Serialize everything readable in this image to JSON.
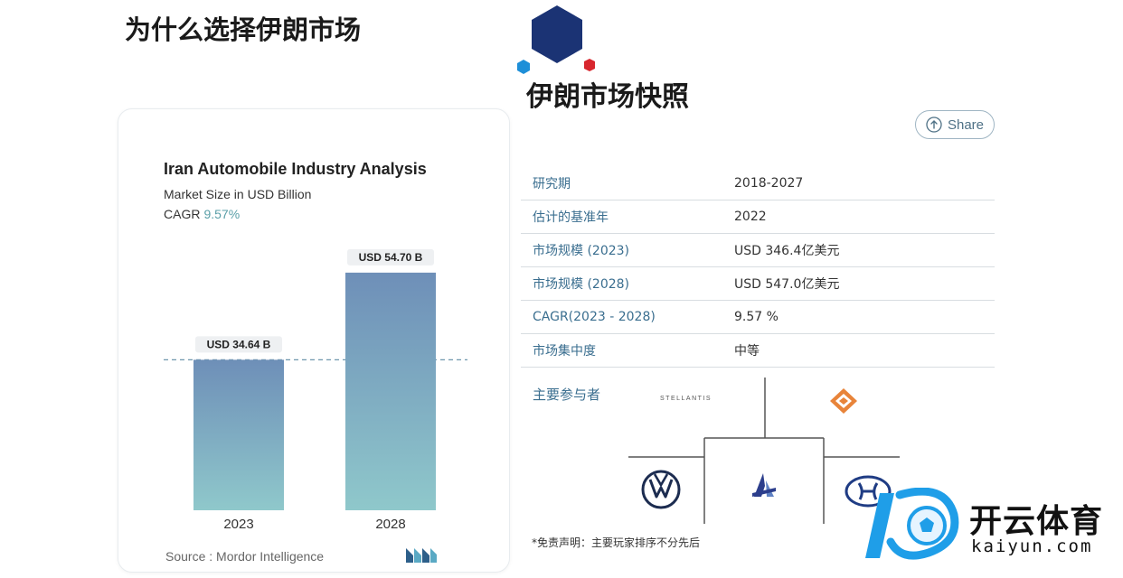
{
  "page": {
    "title": "为什么选择伊朗市场",
    "snapshot_title": "伊朗市场快照"
  },
  "share": {
    "label": "Share"
  },
  "chart_card": {
    "title": "Iran Automobile Industry Analysis",
    "subtitle": "Market Size in USD Billion",
    "cagr_label": "CAGR",
    "cagr_value": "9.57%",
    "source": "Source :  Mordor Intelligence"
  },
  "chart_data": {
    "type": "bar",
    "categories": [
      "2023",
      "2028"
    ],
    "values": [
      34.64,
      54.7
    ],
    "data_labels": [
      "USD 34.64 B",
      "USD 54.70 B"
    ],
    "title": "Iran Automobile Industry Analysis",
    "subtitle": "Market Size in USD Billion",
    "ylim": [
      0,
      58
    ],
    "grid": false,
    "reference_line_value": 34.64,
    "colors": {
      "bar_top": "#6e8fb8",
      "bar_bottom": "#8fc8cb",
      "label_bg": "#eef0f2",
      "reference_line": "#6f97ad"
    }
  },
  "snapshot": {
    "rows": [
      {
        "label": "研究期",
        "value": "2018-2027"
      },
      {
        "label": "估计的基准年",
        "value": "2022"
      },
      {
        "label": "市场规模 (2023)",
        "value": "USD 346.4亿美元"
      },
      {
        "label": "市场规模 (2028)",
        "value": "USD 547.0亿美元"
      },
      {
        "label": "CAGR(2023 - 2028)",
        "value": "9.57 %"
      },
      {
        "label": "市场集中度",
        "value": "中等"
      }
    ]
  },
  "players": {
    "label": "主要参与者",
    "stellantis_text": "STELLANTIS",
    "logos": [
      "stellantis-logo",
      "saipa-logo",
      "volkswagen-logo",
      "iran-khodro-logo",
      "hyundai-logo"
    ]
  },
  "disclaimer": "*免责声明：主要玩家排序不分先后",
  "watermark": {
    "cn": "开云体育",
    "en": "kaiyun.com"
  },
  "colors": {
    "accent": "#3a6e8f",
    "logo_navy": "#1b3374",
    "logo_blue": "#1e8fd8",
    "logo_red": "#d8262e"
  }
}
